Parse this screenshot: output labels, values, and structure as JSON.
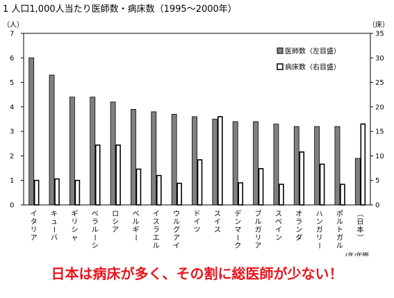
{
  "header": {
    "title": "1 人口1,000人当たり医師数・病床数（1995〜2000年）"
  },
  "caption": "日本は病床が多く、その割に総医師が少ない！",
  "cut_note": "(年/年間",
  "colors": {
    "doctors": "#808080",
    "beds": "#ffffff",
    "outline": "#000000",
    "caption": "#e8141b"
  },
  "chart_data": {
    "type": "bar",
    "title": "1 人口1,000人当たり医師数・病床数（1995〜2000年）",
    "categories": [
      "イタリア",
      "キューバ",
      "ギリシャ",
      "ベラルーシ",
      "ロシア",
      "ベルギー",
      "イスラエル",
      "ウルグアイ",
      "ドイツ",
      "スイス",
      "デンマーク",
      "ブルガリア",
      "スペイン",
      "オランダ",
      "ハンガリー",
      "ポルトガル",
      "（日本）"
    ],
    "series": [
      {
        "name": "医師数（左目盛）",
        "axis": "left",
        "values": [
          6.0,
          5.3,
          4.4,
          4.4,
          4.2,
          3.9,
          3.8,
          3.7,
          3.6,
          3.5,
          3.4,
          3.4,
          3.3,
          3.2,
          3.2,
          3.2,
          1.9
        ]
      },
      {
        "name": "病床数（右目盛）",
        "axis": "right",
        "values": [
          5.0,
          5.3,
          5.0,
          12.2,
          12.2,
          7.3,
          6.0,
          4.4,
          9.2,
          18.0,
          4.5,
          7.4,
          4.2,
          10.8,
          8.3,
          4.2,
          16.5
        ]
      }
    ],
    "y_left": {
      "unit": "（人）",
      "ylim": [
        0,
        7
      ],
      "ticks": [
        "0",
        "1",
        "2",
        "3",
        "4",
        "5",
        "6",
        "7"
      ]
    },
    "y_right": {
      "unit": "（床）",
      "ylim": [
        0,
        35
      ],
      "ticks": [
        "0",
        "5",
        "10",
        "15",
        "20",
        "25",
        "30",
        "35"
      ]
    },
    "legend": "top-right",
    "grid": false
  }
}
